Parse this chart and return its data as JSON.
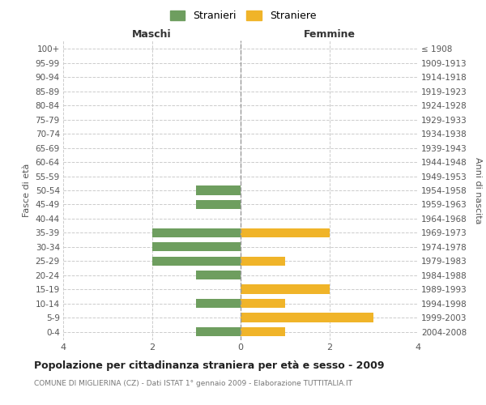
{
  "age_groups": [
    "100+",
    "95-99",
    "90-94",
    "85-89",
    "80-84",
    "75-79",
    "70-74",
    "65-69",
    "60-64",
    "55-59",
    "50-54",
    "45-49",
    "40-44",
    "35-39",
    "30-34",
    "25-29",
    "20-24",
    "15-19",
    "10-14",
    "5-9",
    "0-4"
  ],
  "birth_years": [
    "≤ 1908",
    "1909-1913",
    "1914-1918",
    "1919-1923",
    "1924-1928",
    "1929-1933",
    "1934-1938",
    "1939-1943",
    "1944-1948",
    "1949-1953",
    "1954-1958",
    "1959-1963",
    "1964-1968",
    "1969-1973",
    "1974-1978",
    "1979-1983",
    "1984-1988",
    "1989-1993",
    "1994-1998",
    "1999-2003",
    "2004-2008"
  ],
  "maschi": [
    0,
    0,
    0,
    0,
    0,
    0,
    0,
    0,
    0,
    0,
    1,
    1,
    0,
    2,
    2,
    2,
    1,
    0,
    1,
    0,
    1
  ],
  "femmine": [
    0,
    0,
    0,
    0,
    0,
    0,
    0,
    0,
    0,
    0,
    0,
    0,
    0,
    2,
    0,
    1,
    0,
    2,
    1,
    3,
    1
  ],
  "maschi_color": "#6e9e5f",
  "femmine_color": "#f0b429",
  "xlim": 4,
  "title": "Popolazione per cittadinanza straniera per età e sesso - 2009",
  "subtitle": "COMUNE DI MIGLIERINA (CZ) - Dati ISTAT 1° gennaio 2009 - Elaborazione TUTTITALIA.IT",
  "legend_stranieri": "Stranieri",
  "legend_straniere": "Straniere",
  "label_maschi": "Maschi",
  "label_femmine": "Femmine",
  "label_fasce": "Fasce di età",
  "label_anni": "Anni di nascita",
  "background_color": "#ffffff",
  "grid_color": "#cccccc"
}
